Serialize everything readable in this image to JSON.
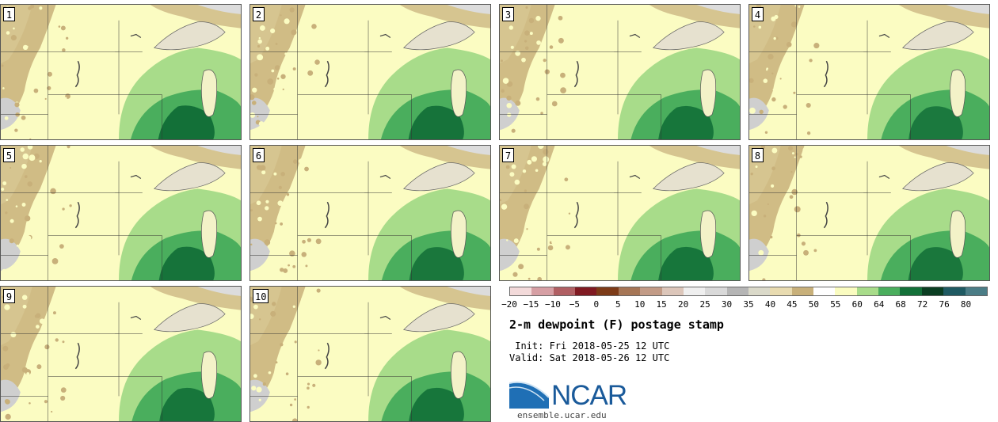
{
  "panels": [
    {
      "label": "1",
      "intensity": 1.0
    },
    {
      "label": "2",
      "intensity": 0.9
    },
    {
      "label": "3",
      "intensity": 0.85
    },
    {
      "label": "4",
      "intensity": 0.75
    },
    {
      "label": "5",
      "intensity": 0.9
    },
    {
      "label": "6",
      "intensity": 0.8
    },
    {
      "label": "7",
      "intensity": 0.85
    },
    {
      "label": "8",
      "intensity": 0.8
    },
    {
      "label": "9",
      "intensity": 0.85
    },
    {
      "label": "10",
      "intensity": 0.85
    }
  ],
  "colorbar": {
    "colors": [
      "#f3dada",
      "#d69fa4",
      "#b05f63",
      "#801a22",
      "#7d3b18",
      "#a67656",
      "#c29b86",
      "#dcc6ba",
      "#efefef",
      "#d9d9d9",
      "#b5b5b5",
      "#dad9c9",
      "#e8dbb0",
      "#c8b07a",
      "#ffffff",
      "#fafcc0",
      "#a8dc8a",
      "#4aae5d",
      "#137038",
      "#0b3e22",
      "#1f5a62",
      "#4b7d86"
    ],
    "ticks": [
      "−20",
      "−15",
      "−10",
      "−5",
      "0",
      "5",
      "10",
      "15",
      "20",
      "25",
      "30",
      "35",
      "40",
      "45",
      "50",
      "55",
      "60",
      "64",
      "68",
      "72",
      "76",
      "80"
    ]
  },
  "title": "2-m dewpoint (F) postage stamp",
  "init": " Init: Fri 2018-05-25 12 UTC",
  "valid": "Valid: Sat 2018-05-26 12 UTC",
  "logo": {
    "text": "NCAR",
    "site": "ensemble.ucar.edu",
    "color": "#1a5a9a"
  }
}
